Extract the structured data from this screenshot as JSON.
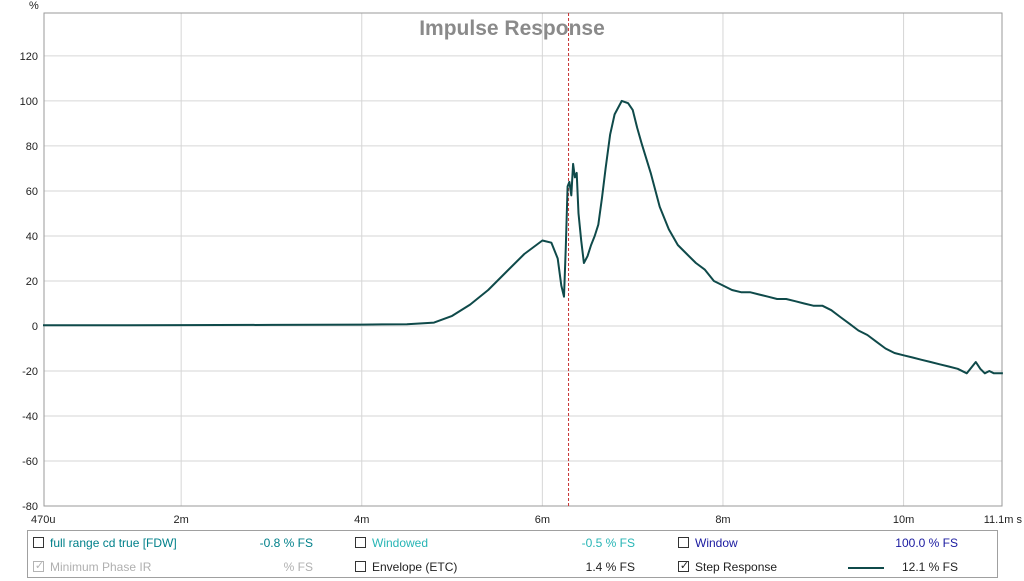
{
  "chart_data": {
    "type": "line",
    "title": "Impulse Response",
    "ylabel": "%",
    "xunit": "s",
    "ylim": [
      -80,
      135
    ],
    "xlim": [
      0.00047,
      0.0111
    ],
    "y_ticks": [
      "120",
      "100",
      "80",
      "60",
      "40",
      "20",
      "0",
      "-20",
      "-40",
      "-60",
      "-80"
    ],
    "y_tick_values": [
      120,
      100,
      80,
      60,
      40,
      20,
      0,
      -20,
      -40,
      -60,
      -80
    ],
    "x_ticks": [
      "470u",
      "2m",
      "4m",
      "6m",
      "8m",
      "10m",
      "11.1m s"
    ],
    "x_tick_values": [
      0.00047,
      0.002,
      0.004,
      0.006,
      0.008,
      0.01,
      0.0111
    ],
    "marker_x": 0.00629,
    "grid": true,
    "series": [
      {
        "name": "Step Response",
        "color": "#0f4a4a",
        "x": [
          0.00047,
          0.001,
          0.002,
          0.003,
          0.004,
          0.0045,
          0.0048,
          0.005,
          0.0052,
          0.0054,
          0.0056,
          0.0058,
          0.006,
          0.0061,
          0.00617,
          0.00621,
          0.00624,
          0.00626,
          0.00628,
          0.0063,
          0.00632,
          0.00634,
          0.00636,
          0.00638,
          0.0064,
          0.00643,
          0.00646,
          0.0065,
          0.00654,
          0.00658,
          0.00662,
          0.00666,
          0.0067,
          0.00675,
          0.0068,
          0.00688,
          0.00695,
          0.007,
          0.00705,
          0.0071,
          0.0072,
          0.0073,
          0.0074,
          0.0075,
          0.0076,
          0.0077,
          0.0078,
          0.0079,
          0.008,
          0.0081,
          0.0082,
          0.0083,
          0.0084,
          0.0085,
          0.0086,
          0.0087,
          0.0088,
          0.0089,
          0.009,
          0.0091,
          0.0092,
          0.0093,
          0.0094,
          0.0095,
          0.0096,
          0.0097,
          0.0098,
          0.0099,
          0.01,
          0.0101,
          0.0102,
          0.0103,
          0.0104,
          0.0105,
          0.0106,
          0.0107,
          0.0108,
          0.01085,
          0.0109,
          0.01095,
          0.011,
          0.0111
        ],
        "values": [
          0.3,
          0.3,
          0.4,
          0.5,
          0.6,
          0.8,
          1.5,
          4.5,
          9.5,
          16,
          24,
          32,
          38,
          37,
          30,
          18,
          13,
          35,
          62,
          64,
          58,
          72,
          66,
          68,
          50,
          38,
          28,
          31,
          36,
          40,
          45,
          57,
          70,
          85,
          94,
          100,
          99,
          96,
          88,
          81,
          68,
          53,
          43,
          36,
          32,
          28,
          25,
          20,
          18,
          16,
          15,
          15,
          14,
          13,
          12,
          12,
          11,
          10,
          9,
          9,
          7,
          4,
          1,
          -2,
          -4,
          -7,
          -10,
          -12,
          -13,
          -14,
          -15,
          -16,
          -17,
          -18,
          -19,
          -21,
          -16,
          -19,
          -21,
          -20,
          -21,
          -21
        ]
      }
    ]
  },
  "legend": {
    "rows": [
      [
        {
          "label": "full range cd true [FDW]",
          "value": "-0.8 % FS",
          "checked": false,
          "disabled": false,
          "color": "#00808a",
          "value_color": "#00808a"
        },
        {
          "label": "Windowed",
          "value": "-0.5 % FS",
          "checked": false,
          "disabled": false,
          "color": "#27b5b5",
          "value_color": "#27b5b5"
        },
        {
          "label": "Window",
          "value": "100.0 % FS",
          "checked": false,
          "disabled": false,
          "color": "#1a1aa0",
          "value_color": "#1a1aa0"
        }
      ],
      [
        {
          "label": "Minimum Phase IR",
          "value": "% FS",
          "checked": true,
          "disabled": true,
          "color": "#b0b0b0",
          "value_color": "#b0b0b0"
        },
        {
          "label": "Envelope (ETC)",
          "value": "1.4 % FS",
          "checked": false,
          "disabled": false,
          "color": "#222222",
          "value_color": "#222222"
        },
        {
          "label": "Step Response",
          "value": "12.1 % FS",
          "checked": true,
          "disabled": false,
          "color": "#222222",
          "value_color": "#222222",
          "swatch": "#0f4a4a"
        }
      ]
    ]
  }
}
